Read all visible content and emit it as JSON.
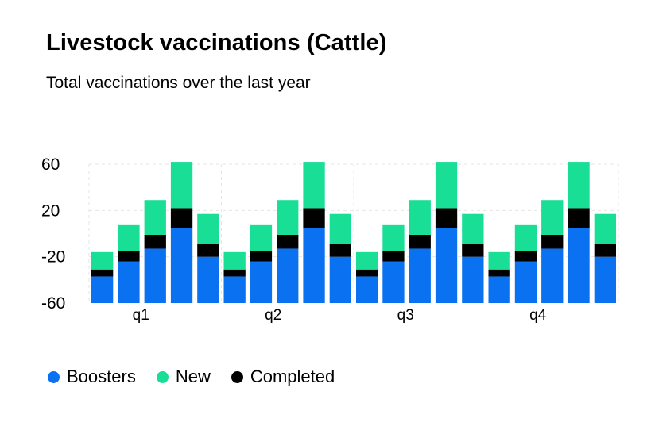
{
  "chart_data": {
    "type": "bar",
    "stacked": true,
    "title": "Livestock vaccinations (Cattle)",
    "subtitle": "Total vaccinations over the last year",
    "categories": [
      "q1",
      "q2",
      "q3",
      "q4"
    ],
    "bars_per_category": 5,
    "ylim": [
      -60,
      60
    ],
    "yticks": [
      60,
      20,
      -20,
      -60
    ],
    "grid": true,
    "series": [
      {
        "name": "Boosters",
        "color": "#0a72f0",
        "values": [
          [
            -37,
            -24,
            -13,
            5,
            -20
          ],
          [
            -37,
            -24,
            -13,
            5,
            -20
          ],
          [
            -37,
            -24,
            -13,
            5,
            -20
          ],
          [
            -37,
            -24,
            -13,
            5,
            -20
          ]
        ]
      },
      {
        "name": "Completed",
        "color": "#000000",
        "values": [
          [
            6,
            9,
            12,
            17,
            11
          ],
          [
            6,
            9,
            12,
            17,
            11
          ],
          [
            6,
            9,
            12,
            17,
            11
          ],
          [
            6,
            9,
            12,
            17,
            11
          ]
        ]
      },
      {
        "name": "New",
        "color": "#18de96",
        "values": [
          [
            15,
            23,
            30,
            40,
            26
          ],
          [
            15,
            23,
            30,
            40,
            26
          ],
          [
            15,
            23,
            30,
            40,
            26
          ],
          [
            15,
            23,
            30,
            40,
            26
          ]
        ]
      }
    ],
    "legend": [
      {
        "label": "Boosters",
        "color": "#0a72f0"
      },
      {
        "label": "New",
        "color": "#18de96"
      },
      {
        "label": "Completed",
        "color": "#000000"
      }
    ],
    "legend_position": "bottom-left"
  }
}
